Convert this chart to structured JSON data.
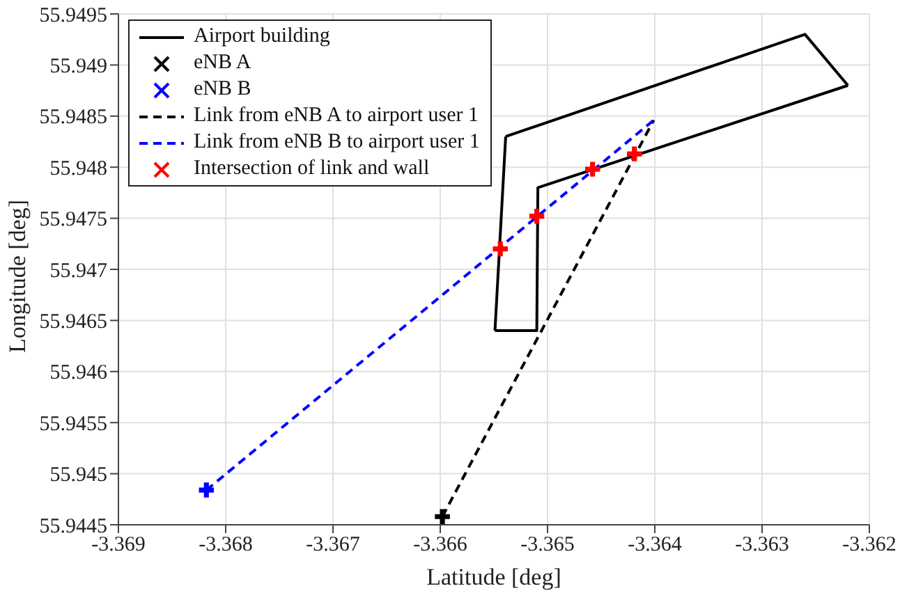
{
  "chart_data": {
    "type": "line",
    "xlabel": "Latitude [deg]",
    "ylabel": "Longitude [deg]",
    "xlim": [
      -3.369,
      -3.362
    ],
    "xticks": [
      -3.369,
      -3.368,
      -3.367,
      -3.366,
      -3.365,
      -3.364,
      -3.363,
      -3.362
    ],
    "ylim": [
      55.9445,
      55.9495
    ],
    "yticks": [
      55.9445,
      55.945,
      55.9455,
      55.946,
      55.9465,
      55.947,
      55.9475,
      55.948,
      55.9485,
      55.949,
      55.9495
    ],
    "grid": true,
    "legend": "top left",
    "series": [
      {
        "name": "Airport building",
        "color": "#000000",
        "line_style": "solid",
        "marker": "none",
        "x": [
          -3.36539,
          -3.3626,
          -3.3622
        ],
        "values": [
          55.9483,
          55.9493,
          55.9488
        ]
      },
      {
        "color": "#000000",
        "line_style": "solid",
        "marker": "none",
        "x": [
          -3.3622,
          -3.36509,
          -3.3651,
          -3.36549
        ],
        "values": [
          55.9488,
          55.9478,
          55.9464,
          55.9464
        ]
      },
      {
        "color": "#000000",
        "line_style": "solid",
        "marker": "none",
        "x": [
          -3.36549,
          -3.36539
        ],
        "values": [
          55.9464,
          55.9483
        ]
      },
      {
        "name": "eNB A",
        "type": "scatter",
        "color": "#000000",
        "marker": "cross",
        "x": [
          -3.36598
        ],
        "values": [
          55.94458
        ]
      },
      {
        "name": "eNB B",
        "type": "scatter",
        "color": "#0000ff",
        "marker": "cross",
        "x": [
          -3.36818
        ],
        "values": [
          55.94484
        ]
      },
      {
        "name": "Link from eNB A to airport user 1",
        "color": "#000000",
        "line_style": "dashed",
        "marker": "none",
        "x": [
          -3.36598,
          -3.36401
        ],
        "values": [
          55.94458,
          55.94846
        ]
      },
      {
        "name": "Link from eNB B to airport user 1",
        "color": "#0000ff",
        "line_style": "dashed",
        "marker": "none",
        "x": [
          -3.36818,
          -3.36401
        ],
        "values": [
          55.94484,
          55.94846
        ]
      },
      {
        "name": "Intersection of link and wall",
        "type": "scatter",
        "color": "#ff0000",
        "marker": "cross",
        "x": [
          -3.36544,
          -3.3651,
          -3.36458,
          -3.36419
        ],
        "values": [
          55.9472,
          55.94752,
          55.94798,
          55.94813
        ]
      }
    ]
  }
}
